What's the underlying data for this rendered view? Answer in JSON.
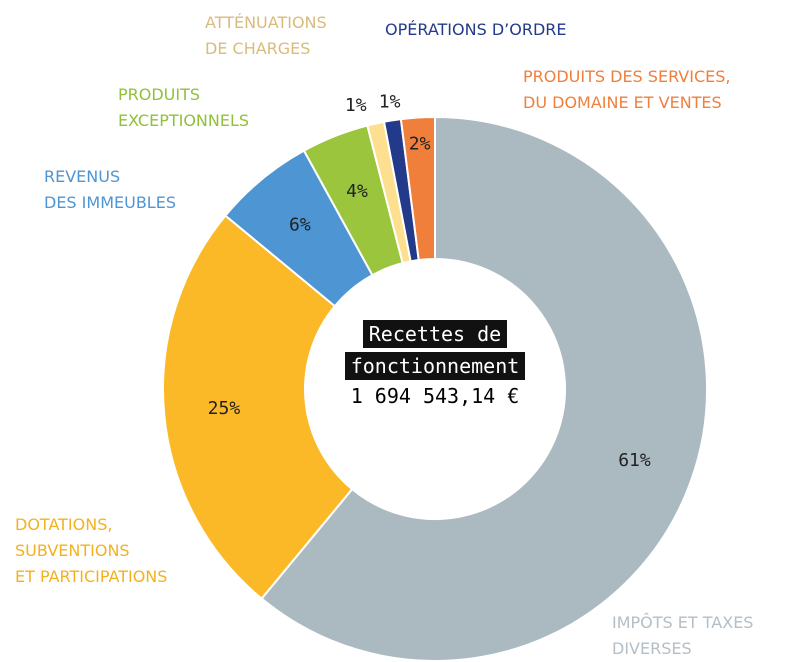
{
  "chart_data": {
    "type": "donut",
    "center_title": [
      "Recettes de",
      "fonctionnement"
    ],
    "center_value": "1 694 543,14 €",
    "categories": [
      "IMPÔTS ET TAXES\nDIVERSES",
      "DOTATIONS,\nSUBVENTIONS\nET PARTICIPATIONS",
      "REVENUS\nDES IMMEUBLES",
      "PRODUITS\nEXCEPTIONNELS",
      "ATTÉNUATIONS\nDE CHARGES",
      "OPÉRATIONS D’ORDRE",
      "PRODUITS DES SERVICES,\nDU DOMAINE ET VENTES"
    ],
    "values": [
      61,
      25,
      6,
      4,
      1,
      1,
      2
    ],
    "value_labels": [
      "61%",
      "25%",
      "6%",
      "4%",
      "1%",
      "1%",
      "2%"
    ],
    "colors": [
      "#abb9c1",
      "#fbb928",
      "#4e95d3",
      "#9bc53d",
      "#fde08f",
      "#233a8a",
      "#f07f3c"
    ],
    "label_colors": [
      "#b3bec6",
      "#f4b11f",
      "#4e95d3",
      "#8fc13a",
      "#d9bb7c",
      "#233a8a",
      "#f07f3c"
    ]
  }
}
